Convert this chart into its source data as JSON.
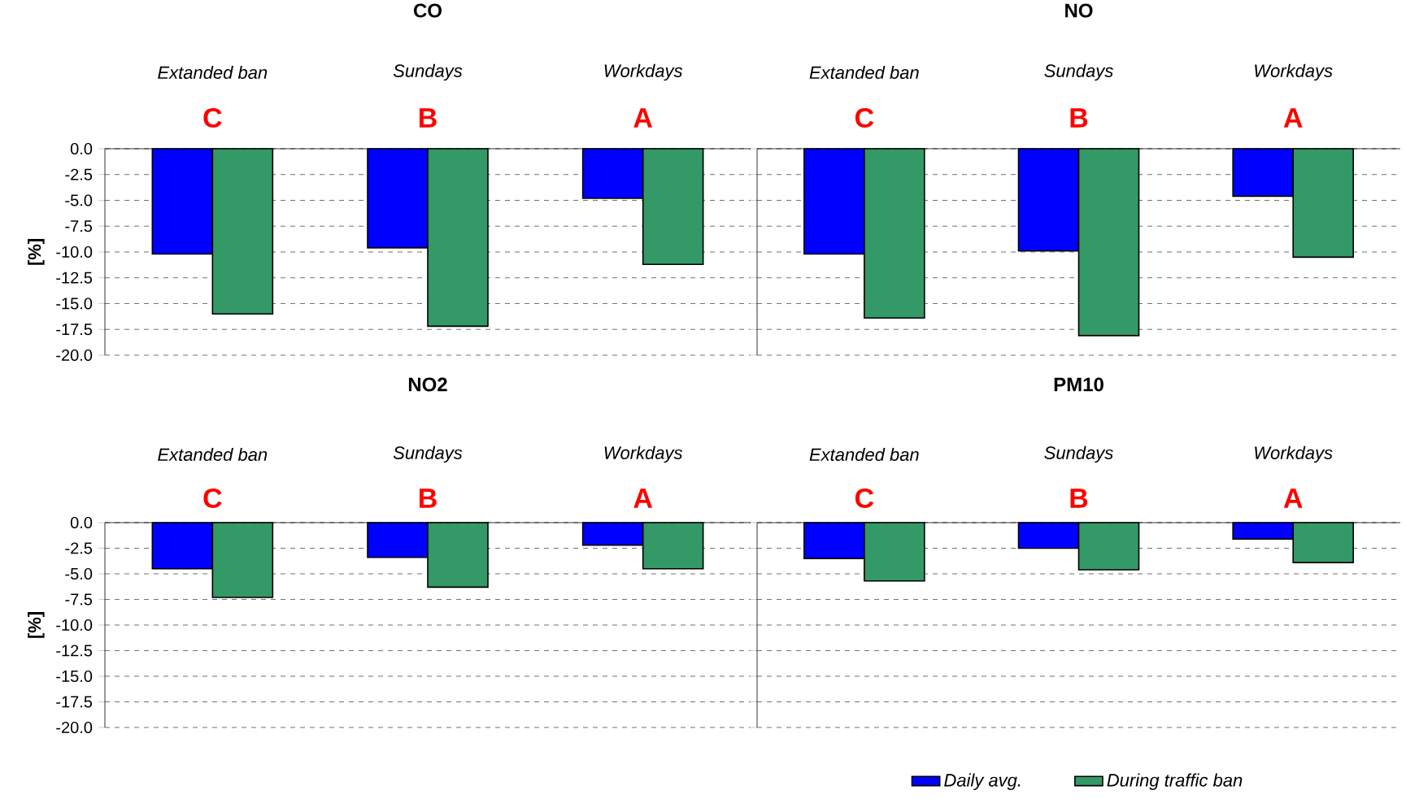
{
  "chart_data": [
    {
      "type": "bar",
      "title": "CO",
      "ylabel": "[%]",
      "categories": [
        "Extanded ban",
        "Sundays",
        "Workdays"
      ],
      "annotations": [
        "C",
        "B",
        "A"
      ],
      "series": [
        {
          "color": "#0000ff",
          "values": [
            -10.2,
            -9.6,
            -4.8
          ]
        },
        {
          "color": "#339966",
          "values": [
            -16.0,
            -17.2,
            -11.2
          ]
        }
      ],
      "ylim": [
        -20,
        0
      ],
      "yticks": [
        {
          "value": 0,
          "label": "0.0"
        },
        {
          "value": -2.5,
          "label": "-2.5"
        },
        {
          "value": -5,
          "label": "-5.0"
        },
        {
          "value": -7.5,
          "label": "-7.5"
        },
        {
          "value": -10,
          "label": "-10.0"
        },
        {
          "value": -12.5,
          "label": "-12.5"
        },
        {
          "value": -15,
          "label": "-15.0"
        },
        {
          "value": -17.5,
          "label": "-17.5"
        },
        {
          "value": -20,
          "label": "-20.0"
        }
      ],
      "grid": "y"
    },
    {
      "type": "bar",
      "title": "NO",
      "categories": [
        "Extanded ban",
        "Sundays",
        "Workdays"
      ],
      "annotations": [
        "C",
        "B",
        "A"
      ],
      "series": [
        {
          "color": "#0000ff",
          "values": [
            -10.2,
            -9.9,
            -4.6
          ]
        },
        {
          "color": "#339966",
          "values": [
            -16.4,
            -18.1,
            -10.5
          ]
        }
      ],
      "ylim": [
        -20,
        0
      ],
      "yticks": [
        {
          "value": 0,
          "label": null
        },
        {
          "value": -2.5,
          "label": null
        },
        {
          "value": -5,
          "label": null
        },
        {
          "value": -7.5,
          "label": null
        },
        {
          "value": -10,
          "label": null
        },
        {
          "value": -12.5,
          "label": null
        },
        {
          "value": -15,
          "label": null
        },
        {
          "value": -17.5,
          "label": null
        },
        {
          "value": -20,
          "label": null
        }
      ],
      "grid": "y",
      "tick_labels": "x"
    },
    {
      "type": "bar",
      "title": "NO2",
      "ylabel": "[%]",
      "categories": [
        "Extanded ban",
        "Sundays",
        "Workdays"
      ],
      "annotations": [
        "C",
        "B",
        "A"
      ],
      "series": [
        {
          "color": "#0000ff",
          "values": [
            -4.5,
            -3.4,
            -2.2
          ]
        },
        {
          "color": "#339966",
          "values": [
            -7.3,
            -6.3,
            -4.5
          ]
        }
      ],
      "ylim": [
        -20,
        0
      ],
      "yticks": [
        {
          "value": 0,
          "label": "0.0"
        },
        {
          "value": -2.5,
          "label": "-2.5"
        },
        {
          "value": -5,
          "label": "-5.0"
        },
        {
          "value": -7.5,
          "label": "-7.5"
        },
        {
          "value": -10,
          "label": "-10.0"
        },
        {
          "value": -12.5,
          "label": "-12.5"
        },
        {
          "value": -15,
          "label": "-15.0"
        },
        {
          "value": -17.5,
          "label": "-17.5"
        },
        {
          "value": -20,
          "label": "-20.0"
        }
      ],
      "grid": "y"
    },
    {
      "type": "bar",
      "title": "PM10",
      "categories": [
        "Extanded ban",
        "Sundays",
        "Workdays"
      ],
      "annotations": [
        "C",
        "B",
        "A"
      ],
      "series": [
        {
          "name": "Daily avg.",
          "color": "#0000ff",
          "values": [
            -3.5,
            -2.5,
            -1.6
          ]
        },
        {
          "name": "During traffic ban",
          "color": "#339966",
          "values": [
            -5.7,
            -4.6,
            -3.9
          ]
        }
      ],
      "ylim": [
        -20,
        0
      ],
      "yticks": [
        {
          "value": 0,
          "label": null
        },
        {
          "value": -2.5,
          "label": null
        },
        {
          "value": -5,
          "label": null
        },
        {
          "value": -7.5,
          "label": null
        },
        {
          "value": -10,
          "label": null
        },
        {
          "value": -12.5,
          "label": null
        },
        {
          "value": -15,
          "label": null
        },
        {
          "value": -17.5,
          "label": null
        },
        {
          "value": -20,
          "label": null
        }
      ],
      "grid": "y",
      "tick_labels": "x",
      "legend": "bottom"
    }
  ]
}
